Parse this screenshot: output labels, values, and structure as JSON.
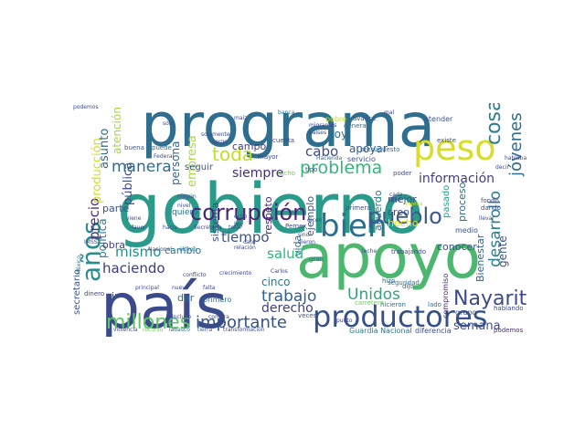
{
  "cloud": {
    "words": [
      {
        "text": "gobierno",
        "color": "#2a9a8a"
      },
      {
        "text": "programa",
        "color": "#2e6e8e"
      },
      {
        "text": "país",
        "color": "#3a4a8a"
      },
      {
        "text": "apoyo",
        "color": "#4cb86f"
      },
      {
        "text": "productores",
        "color": "#35508a"
      },
      {
        "text": "peso",
        "color": "#d6dd2c"
      },
      {
        "text": "bien",
        "color": "#2c6e8e"
      },
      {
        "text": "corrupción",
        "color": "#482576"
      },
      {
        "text": "pueblo",
        "color": "#3b5a8b"
      },
      {
        "text": "años",
        "color": "#2f8a8d"
      },
      {
        "text": "Nayarit",
        "color": "#3c4a89"
      },
      {
        "text": "millones",
        "color": "#5ac762"
      },
      {
        "text": "importante",
        "color": "#34528a"
      },
      {
        "text": "problema",
        "color": "#35b57a"
      },
      {
        "text": "manera",
        "color": "#2f6c8e"
      },
      {
        "text": "toda",
        "color": "#c2df23"
      },
      {
        "text": "cosa",
        "color": "#2e7e8e"
      },
      {
        "text": "jóvenes",
        "color": "#2f6b8e"
      },
      {
        "text": "desarrollo",
        "color": "#2a7e8e"
      },
      {
        "text": "Unidos",
        "color": "#3aa07f"
      },
      {
        "text": "trabajo",
        "color": "#33608d"
      },
      {
        "text": "haciendo",
        "color": "#3b3b88"
      },
      {
        "text": "mismo",
        "color": "#21908d"
      },
      {
        "text": "tiempo",
        "color": "#3b528b"
      },
      {
        "text": "salud",
        "color": "#2fb47c"
      },
      {
        "text": "precio",
        "color": "#46307c"
      },
      {
        "text": "cabo",
        "color": "#3e4a89"
      },
      {
        "text": "hoy",
        "color": "#2e6e8e"
      },
      {
        "text": "derecho",
        "color": "#41417e"
      },
      {
        "text": "semana",
        "color": "#3d4e8a"
      },
      {
        "text": "información",
        "color": "#433d84"
      },
      {
        "text": "siempre",
        "color": "#472d7b"
      },
      {
        "text": "apoyar",
        "color": "#38588c"
      },
      {
        "text": "cinco",
        "color": "#29788e"
      },
      {
        "text": "producción",
        "color": "#d2e21b"
      },
      {
        "text": "campo",
        "color": "#404387"
      },
      {
        "text": "empresa",
        "color": "#a8db34"
      },
      {
        "text": "pública",
        "color": "#3e4c8a"
      },
      {
        "text": "asunto",
        "color": "#2e6e8e"
      },
      {
        "text": "persona",
        "color": "#2f6c8e"
      },
      {
        "text": "atención",
        "color": "#a2da37"
      },
      {
        "text": "política",
        "color": "#2a7c8e"
      },
      {
        "text": "parte",
        "color": "#3d4e8a"
      },
      {
        "text": "obra",
        "color": "#433e85"
      },
      {
        "text": "cambio",
        "color": "#2b748e"
      },
      {
        "text": "mejor",
        "color": "#3c4f8a"
      },
      {
        "text": "creo",
        "color": "#3b528b"
      },
      {
        "text": "hecho",
        "color": "#e1e31d"
      },
      {
        "text": "acuerdo",
        "color": "#2a788e"
      },
      {
        "text": "proceso",
        "color": "#2e6e8e"
      },
      {
        "text": "pasado",
        "color": "#1fa187"
      },
      {
        "text": "gente",
        "color": "#3c4f8a"
      },
      {
        "text": "Bienestar",
        "color": "#34618d"
      },
      {
        "text": "conocer",
        "color": "#3b528b"
      },
      {
        "text": "vida",
        "color": "#2a778e"
      },
      {
        "text": "ejemplo",
        "color": "#3b528b"
      },
      {
        "text": "respeto",
        "color": "#482878"
      },
      {
        "text": "sistema",
        "color": "#3e4989"
      },
      {
        "text": "Guardia Nacional",
        "color": "#2a778e"
      },
      {
        "text": "diferencia",
        "color": "#3d4e8a"
      },
      {
        "text": "podemos",
        "color": "#472c7a"
      },
      {
        "text": "secretario",
        "color": "#3b528b"
      },
      {
        "text": "dar",
        "color": "#2e6e8e"
      },
      {
        "text": "quiero",
        "color": "#2e6e8e"
      },
      {
        "text": "primero",
        "color": "#2e6e8e"
      },
      {
        "text": "ir",
        "color": "#3b528b"
      },
      {
        "text": "compromiso",
        "color": "#482576"
      },
      {
        "text": "hablando",
        "color": "#3e4989"
      },
      {
        "text": "grupo",
        "color": "#3b528b"
      },
      {
        "text": "medio",
        "color": "#3b528b"
      },
      {
        "text": "fondo",
        "color": "#3e4989"
      },
      {
        "text": "dando",
        "color": "#3e4989"
      },
      {
        "text": "mayor",
        "color": "#3e4989"
      },
      {
        "text": "cuenta",
        "color": "#3e4989"
      },
      {
        "text": "pobre",
        "color": "#c2df23"
      },
      {
        "text": "atender",
        "color": "#3b528b"
      },
      {
        "text": "existe",
        "color": "#3b528b"
      },
      {
        "text": "servicio",
        "color": "#3b528b"
      },
      {
        "text": "poder",
        "color": "#3b528b"
      },
      {
        "text": "dicho",
        "color": "#6ece58"
      },
      {
        "text": "tipo",
        "color": "#3e4989"
      },
      {
        "text": "ley",
        "color": "#3e4989"
      },
      {
        "text": "buena",
        "color": "#3b528b"
      },
      {
        "text": "puede",
        "color": "#2e6e8e"
      },
      {
        "text": "banca",
        "color": "#2e6e8e"
      },
      {
        "text": "presupuesto",
        "color": "#2e6e8e"
      },
      {
        "text": "general",
        "color": "#2e6e8e"
      },
      {
        "text": "avance",
        "color": "#3b528b"
      },
      {
        "text": "seguir",
        "color": "#3b528b"
      },
      {
        "text": "Pemex",
        "color": "#3e4989"
      },
      {
        "text": "gran",
        "color": "#2e6e8e"
      },
      {
        "text": "dijo",
        "color": "#2e6e8e"
      },
      {
        "text": "hizo",
        "color": "#2e6e8e"
      },
      {
        "text": "primera",
        "color": "#3e4989"
      },
      {
        "text": "hicieron",
        "color": "#2e6e8e"
      },
      {
        "text": "lado",
        "color": "#2e6e8e"
      },
      {
        "text": "carretera",
        "color": "#6ece58"
      },
      {
        "text": "veces",
        "color": "#3b528b"
      },
      {
        "text": "seguridad",
        "color": "#2e6e8e"
      },
      {
        "text": "trabajando",
        "color": "#3e4989"
      },
      {
        "text": "leche",
        "color": "#3e4989"
      },
      {
        "text": "Nacional",
        "color": "#3e4989"
      },
      {
        "text": "último",
        "color": "#2e6e8e"
      },
      {
        "text": "relación",
        "color": "#3e4989"
      },
      {
        "text": "conflicto",
        "color": "#3e4989"
      },
      {
        "text": "crecimiento",
        "color": "#3e4989"
      },
      {
        "text": "Carlos",
        "color": "#3e4989"
      },
      {
        "text": "violencia",
        "color": "#3e4989"
      },
      {
        "text": "recurso",
        "color": "#6ece58"
      },
      {
        "text": "Tabasco",
        "color": "#2e6e8e"
      },
      {
        "text": "tierra",
        "color": "#3b528b"
      },
      {
        "text": "transformación",
        "color": "#3e4989"
      },
      {
        "text": "dinero",
        "color": "#3e4989"
      },
      {
        "text": "IMSS",
        "color": "#3e4989"
      },
      {
        "text": "México",
        "color": "#2e6e8e"
      },
      {
        "text": "Secretaría",
        "color": "#3e4989"
      },
      {
        "text": "total",
        "color": "#3e4989"
      },
      {
        "text": "ningún",
        "color": "#3e4989"
      },
      {
        "text": "nivel",
        "color": "#3e4989"
      },
      {
        "text": "favor",
        "color": "#3e4989"
      },
      {
        "text": "viene",
        "color": "#3e4989"
      },
      {
        "text": "hacia",
        "color": "#3e4989"
      },
      {
        "text": "nuevo",
        "color": "#3e4989"
      },
      {
        "text": "sino",
        "color": "#3e4989"
      },
      {
        "text": "dieron",
        "color": "#3e4989"
      },
      {
        "text": "dicen",
        "color": "#3e4989"
      },
      {
        "text": "dato",
        "color": "#3e4989"
      },
      {
        "text": "cada",
        "color": "#3e4989"
      },
      {
        "text": "dice",
        "color": "#3e4989"
      },
      {
        "text": "nueva",
        "color": "#c2df23"
      },
      {
        "text": "principal",
        "color": "#3e4989"
      },
      {
        "text": "incluso",
        "color": "#3e4989"
      },
      {
        "text": "compra",
        "color": "#3e4989"
      },
      {
        "text": "punto",
        "color": "#3e4989"
      },
      {
        "text": "Hacienda",
        "color": "#2e6e8e"
      },
      {
        "text": "Federal",
        "color": "#3e4989"
      },
      {
        "text": "cargo",
        "color": "#3e4989"
      },
      {
        "text": "solamente",
        "color": "#3e4989"
      },
      {
        "text": "maíz",
        "color": "#3e4989"
      },
      {
        "text": "migrantes",
        "color": "#3e4989"
      },
      {
        "text": "países",
        "color": "#3e4989"
      },
      {
        "text": "hablaba",
        "color": "#3e4989"
      },
      {
        "text": "llevar",
        "color": "#3e4989"
      },
      {
        "text": "decir",
        "color": "#3e4989"
      },
      {
        "text": "mal",
        "color": "#3e4989"
      },
      {
        "text": "sólo",
        "color": "#3e4989"
      },
      {
        "text": "falta",
        "color": "#3e4989"
      },
      {
        "text": "podemos",
        "color": "#3e4989"
      },
      {
        "text": "ocho",
        "color": "#3e4989"
      }
    ]
  }
}
